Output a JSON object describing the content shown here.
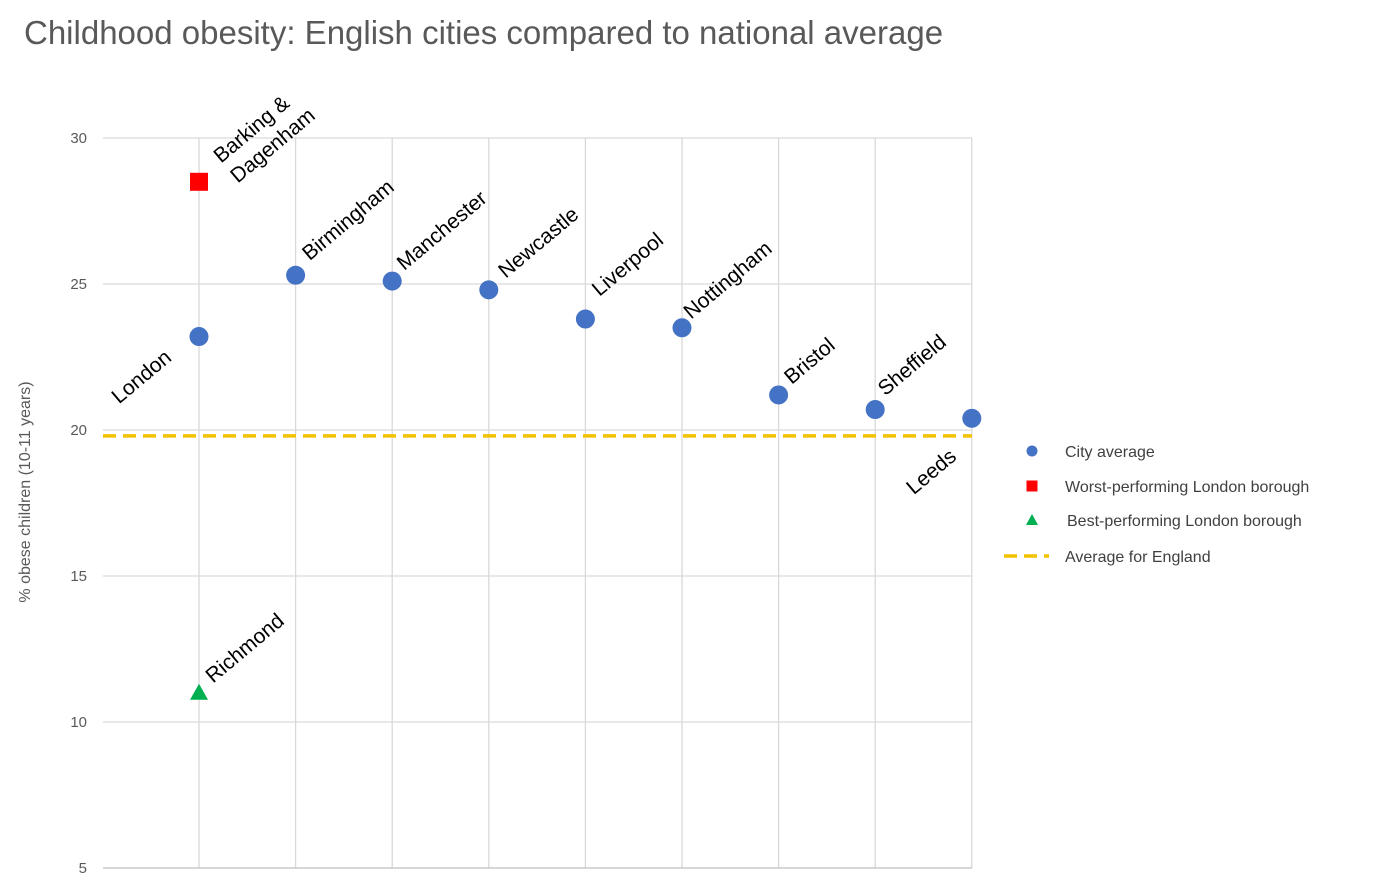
{
  "chart_data": {
    "type": "scatter",
    "title": "Childhood obesity: English cities compared to national average",
    "ylabel": "% obese children (10-11 years)",
    "xlabel": "",
    "ylim": [
      5,
      30
    ],
    "yticks": [
      5,
      10,
      15,
      20,
      25,
      30
    ],
    "grid": true,
    "legend_position": "right",
    "reference_line": {
      "name": "Average for England",
      "value": 19.8,
      "color": "#F2C200"
    },
    "series": [
      {
        "name": "City average",
        "marker": "circle",
        "color": "#4472C4",
        "points": [
          {
            "x": 1,
            "label": "London",
            "value": 23.2
          },
          {
            "x": 2,
            "label": "Birmingham",
            "value": 25.3
          },
          {
            "x": 3,
            "label": "Manchester",
            "value": 25.1
          },
          {
            "x": 4,
            "label": "Newcastle",
            "value": 24.8
          },
          {
            "x": 5,
            "label": "Liverpool",
            "value": 23.8
          },
          {
            "x": 6,
            "label": "Nottingham",
            "value": 23.5
          },
          {
            "x": 7,
            "label": "Bristol",
            "value": 21.2
          },
          {
            "x": 8,
            "label": "Sheffield",
            "value": 20.7
          },
          {
            "x": 9,
            "label": "Leeds",
            "value": 20.4
          }
        ]
      },
      {
        "name": "Worst-performing London borough",
        "marker": "square",
        "color": "#FF0000",
        "points": [
          {
            "x": 1,
            "label": "Barking & Dagenham",
            "label_lines": [
              "Barking &",
              "Dagenham"
            ],
            "value": 28.5
          }
        ]
      },
      {
        "name": "Best-performing London borough",
        "marker": "triangle",
        "color": "#00B050",
        "points": [
          {
            "x": 1,
            "label": "Richmond",
            "value": 11.0
          }
        ]
      }
    ]
  }
}
